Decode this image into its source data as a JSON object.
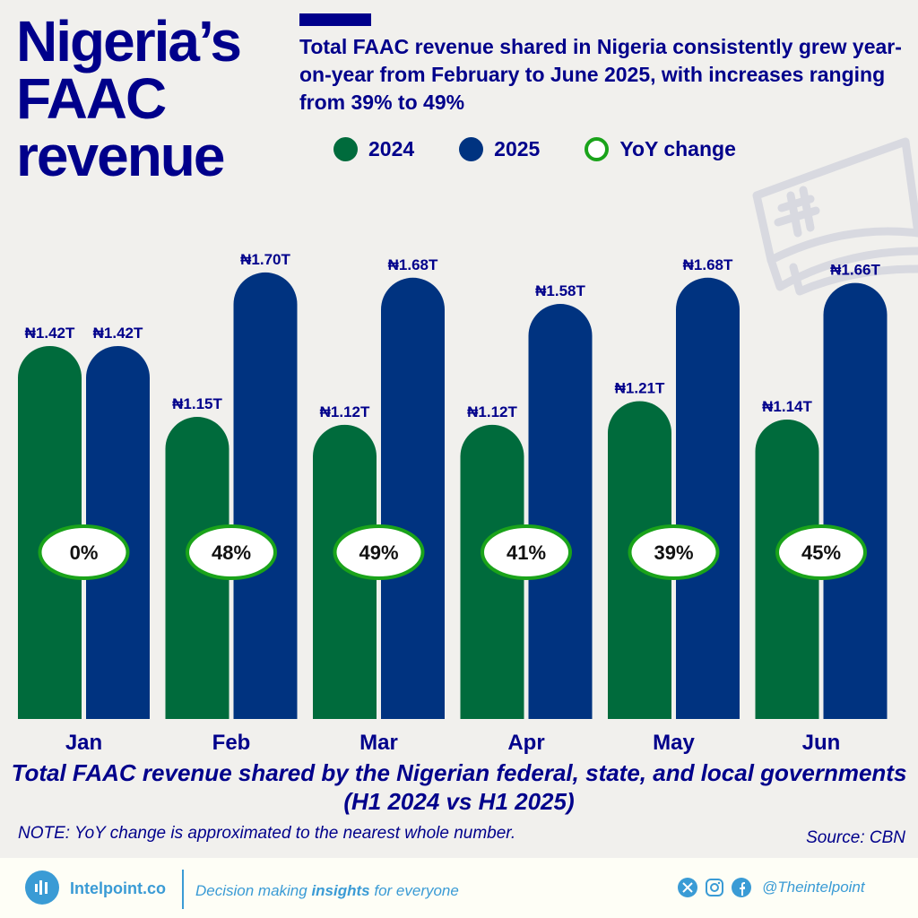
{
  "header": {
    "title_lines": [
      "Nigeria’s",
      "FAAC",
      "revenue"
    ],
    "subtitle": "Total FAAC revenue shared in Nigeria consistently grew year-on-year from February to June 2025, with increases ranging from 39% to 49%"
  },
  "colors": {
    "2024": "#006b3c",
    "2025": "#003380",
    "yoy_ring": "#1aa31a",
    "text": "#00008b",
    "brand": "#3a9bd5"
  },
  "chart_data": {
    "type": "bar",
    "categories": [
      "Jan",
      "Feb",
      "Mar",
      "Apr",
      "May",
      "Jun"
    ],
    "series": [
      {
        "name": "2024",
        "values": [
          1.42,
          1.15,
          1.12,
          1.12,
          1.21,
          1.14
        ],
        "labels": [
          "₦1.42T",
          "₦1.15T",
          "₦1.12T",
          "₦1.12T",
          "₦1.21T",
          "₦1.14T"
        ]
      },
      {
        "name": "2025",
        "values": [
          1.42,
          1.7,
          1.68,
          1.58,
          1.68,
          1.66
        ],
        "labels": [
          "₦1.42T",
          "₦1.70T",
          "₦1.68T",
          "₦1.58T",
          "₦1.68T",
          "₦1.66T"
        ]
      }
    ],
    "yoy_change": [
      "0%",
      "48%",
      "49%",
      "41%",
      "39%",
      "45%"
    ],
    "legend": [
      "2024",
      "2025",
      "YoY change"
    ],
    "legend_placement": "top",
    "unit": "₦ trillion",
    "ylim": [
      0,
      1.75
    ],
    "grid": false,
    "caption": "Total FAAC revenue shared by the Nigerian federal, state, and local governments (H1 2024 vs H1 2025)"
  },
  "note": "NOTE: YoY change is approximated to the nearest whole number.",
  "source": "Source: CBN",
  "footer": {
    "brand": "Intelpoint.co",
    "tagline_pre": "Decision making ",
    "tagline_bold": "insights",
    "tagline_post": " for everyone",
    "handle": "@Theintelpoint",
    "icons": [
      "x-icon",
      "instagram-icon",
      "facebook-icon"
    ]
  }
}
